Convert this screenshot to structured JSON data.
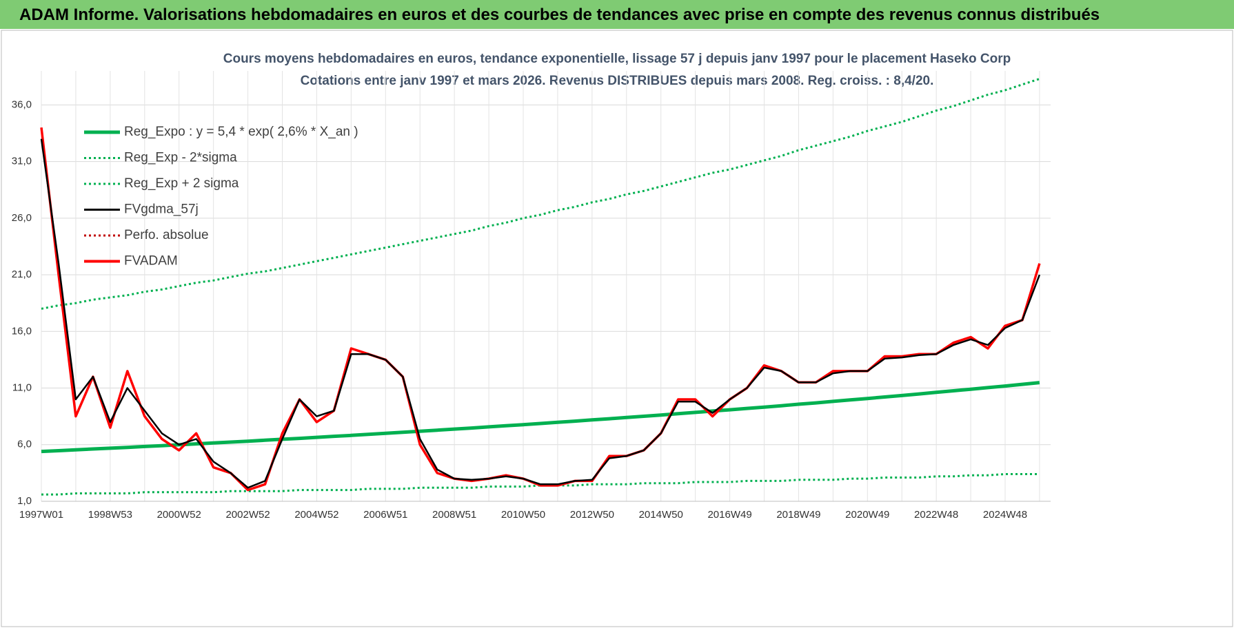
{
  "header": {
    "title": "ADAM Informe. Valorisations hebdomadaires en euros et des courbes de tendances avec prise en compte des revenus connus distribués"
  },
  "chart_data": {
    "type": "line",
    "title": "Cours moyens hebdomadaires en euros, tendance exponentielle, lissage 57 j depuis janv 1997  pour le placement Haseko Corp",
    "subtitle": "Cotations entre janv 1997 et mars 2026. Revenus DISTRIBUES depuis mars 2008.  Reg. croiss. : 8,4/20.",
    "categories": [
      "1997W01",
      null,
      null,
      null,
      "1998W53",
      null,
      null,
      null,
      "2000W52",
      null,
      null,
      null,
      "2002W52",
      null,
      null,
      null,
      "2004W52",
      null,
      null,
      null,
      "2006W51",
      null,
      null,
      null,
      "2008W51",
      null,
      null,
      null,
      "2010W50",
      null,
      null,
      null,
      "2012W50",
      null,
      null,
      null,
      "2014W50",
      null,
      null,
      null,
      "2016W49",
      null,
      null,
      null,
      "2018W49",
      null,
      null,
      null,
      "2020W49",
      null,
      null,
      null,
      "2022W48",
      null,
      null,
      null,
      "2024W48",
      null,
      null
    ],
    "ylim": [
      1,
      39
    ],
    "yticks": [
      {
        "value": 1,
        "label": "1,0"
      },
      {
        "value": 6,
        "label": "6,0"
      },
      {
        "value": 11,
        "label": "11,0"
      },
      {
        "value": 16,
        "label": "16,0"
      },
      {
        "value": 21,
        "label": "21,0"
      },
      {
        "value": 26,
        "label": "26,0"
      },
      {
        "value": 31,
        "label": "31,0"
      },
      {
        "value": 36,
        "label": "36,0"
      }
    ],
    "grid": true,
    "series": [
      {
        "name": "Reg_Expo : y = 5,4 * exp( 2,6% *  X_an )",
        "color": "#00b050",
        "style": "solid",
        "values": [
          5.4,
          5.47,
          5.54,
          5.62,
          5.69,
          5.76,
          5.84,
          5.91,
          5.99,
          6.07,
          6.15,
          6.23,
          6.31,
          6.39,
          6.48,
          6.56,
          6.65,
          6.74,
          6.82,
          6.91,
          7.0,
          7.1,
          7.19,
          7.28,
          7.38,
          7.47,
          7.57,
          7.67,
          7.77,
          7.87,
          7.98,
          8.08,
          8.19,
          8.29,
          8.4,
          8.51,
          8.62,
          8.74,
          8.85,
          8.97,
          9.08,
          9.2,
          9.32,
          9.44,
          9.57,
          9.69,
          9.82,
          9.95,
          10.08,
          10.21,
          10.34,
          10.48,
          10.62,
          10.76,
          10.9,
          11.04,
          11.18,
          11.33,
          11.48
        ]
      },
      {
        "name": "Reg_Exp - 2*sigma",
        "color": "#00b050",
        "style": "dotted",
        "values": [
          1.6,
          1.6,
          1.7,
          1.7,
          1.7,
          1.7,
          1.8,
          1.8,
          1.8,
          1.8,
          1.8,
          1.9,
          1.9,
          1.9,
          1.9,
          2.0,
          2.0,
          2.0,
          2.0,
          2.1,
          2.1,
          2.1,
          2.2,
          2.2,
          2.2,
          2.2,
          2.3,
          2.3,
          2.3,
          2.4,
          2.4,
          2.4,
          2.5,
          2.5,
          2.5,
          2.6,
          2.6,
          2.6,
          2.7,
          2.7,
          2.7,
          2.8,
          2.8,
          2.8,
          2.9,
          2.9,
          2.9,
          3.0,
          3.0,
          3.1,
          3.1,
          3.1,
          3.2,
          3.2,
          3.3,
          3.3,
          3.4,
          3.4,
          3.4
        ]
      },
      {
        "name": "Reg_Exp + 2 sigma",
        "color": "#00b050",
        "style": "dotted",
        "values": [
          18.0,
          18.3,
          18.5,
          18.8,
          19.0,
          19.2,
          19.5,
          19.7,
          20.0,
          20.3,
          20.5,
          20.8,
          21.1,
          21.3,
          21.6,
          21.9,
          22.2,
          22.5,
          22.8,
          23.1,
          23.4,
          23.7,
          24.0,
          24.3,
          24.6,
          24.9,
          25.3,
          25.6,
          26.0,
          26.3,
          26.7,
          27.0,
          27.4,
          27.7,
          28.1,
          28.4,
          28.8,
          29.2,
          29.6,
          30.0,
          30.3,
          30.7,
          31.1,
          31.5,
          32.0,
          32.4,
          32.8,
          33.2,
          33.7,
          34.1,
          34.5,
          35.0,
          35.5,
          35.9,
          36.4,
          36.9,
          37.3,
          37.8,
          38.3
        ]
      },
      {
        "name": "FVgdma_57j",
        "color": "#000000",
        "style": "solid",
        "values": [
          33,
          22,
          10,
          12,
          8,
          11,
          9,
          7,
          6,
          6.5,
          4.5,
          3.5,
          2.2,
          2.8,
          6.5,
          10,
          8.5,
          9,
          14,
          14,
          13.5,
          12,
          6.5,
          3.8,
          3,
          2.9,
          3,
          3.2,
          3,
          2.5,
          2.5,
          2.8,
          2.9,
          4.8,
          5,
          5.5,
          7,
          9.8,
          9.8,
          8.8,
          10,
          11,
          12.8,
          12.5,
          11.5,
          11.5,
          12.3,
          12.5,
          12.5,
          13.6,
          13.7,
          13.9,
          14,
          14.8,
          15.3,
          14.8,
          16.3,
          17,
          21
        ]
      },
      {
        "name": "Perfo. absolue",
        "color": "#c00000",
        "style": "dotted"
      },
      {
        "name": "FVADAM",
        "color": "#ff0000",
        "style": "solid",
        "values": [
          34,
          21,
          8.5,
          12,
          7.5,
          12.5,
          8.5,
          6.5,
          5.5,
          7,
          4,
          3.5,
          2,
          2.5,
          7,
          10,
          8,
          9,
          14.5,
          14,
          13.5,
          12,
          6,
          3.5,
          3,
          2.8,
          3,
          3.3,
          3,
          2.4,
          2.4,
          2.8,
          2.8,
          5,
          5,
          5.5,
          7,
          10,
          10,
          8.5,
          10,
          11,
          13,
          12.5,
          11.5,
          11.5,
          12.5,
          12.5,
          12.5,
          13.8,
          13.8,
          14,
          14,
          15,
          15.5,
          14.5,
          16.5,
          17,
          22
        ]
      }
    ]
  }
}
